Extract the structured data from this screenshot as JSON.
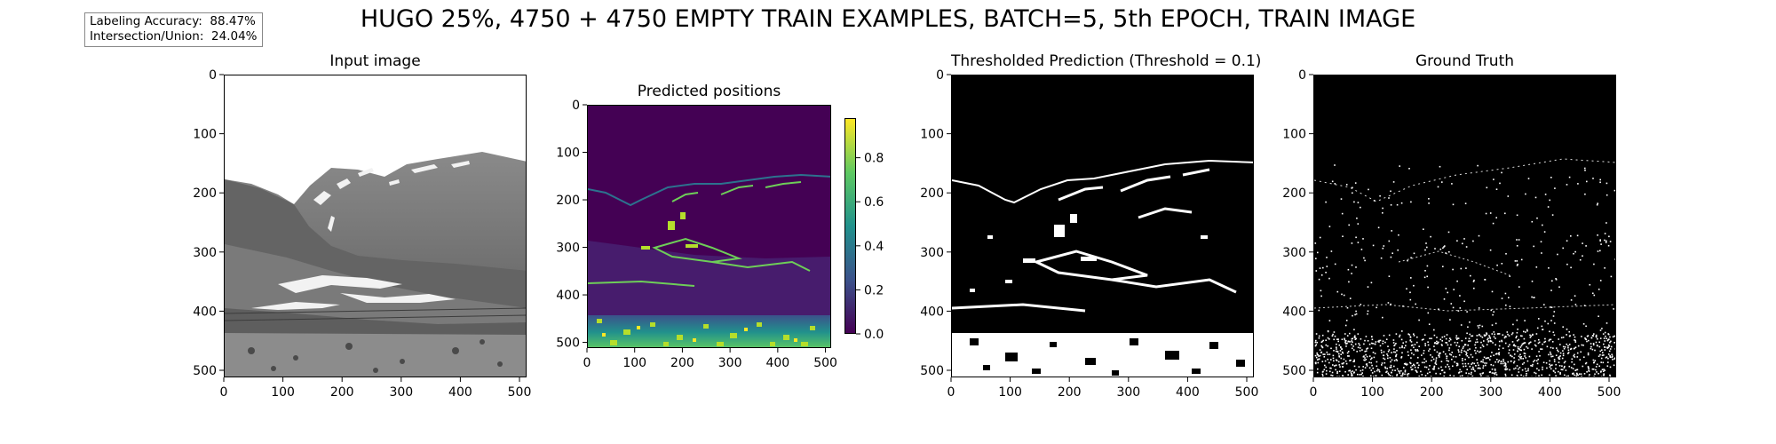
{
  "suptitle": "HUGO 25%, 4750 + 4750 EMPTY TRAIN EXAMPLES, BATCH=5, 5th EPOCH, TRAIN IMAGE",
  "metrics": {
    "accuracy_label": "Labeling Accuracy:",
    "accuracy_value": "88.47%",
    "iou_label": "Intersection/Union:",
    "iou_value": "24.04%"
  },
  "colors": {
    "viridis_low": "#440154",
    "viridis_mid": "#21918c",
    "viridis_high": "#fde725",
    "mask_on": "#ffffff",
    "mask_off": "#000000"
  },
  "chart_data": [
    {
      "type": "heatmap",
      "title": "Input image",
      "colormap": "gray",
      "xlim": [
        0,
        512
      ],
      "ylim": [
        512,
        0
      ],
      "xticks": [
        0,
        100,
        200,
        300,
        400,
        500
      ],
      "yticks": [
        0,
        100,
        200,
        300,
        400,
        500
      ]
    },
    {
      "type": "heatmap",
      "title": "Predicted positions",
      "colormap": "viridis",
      "xlim": [
        0,
        512
      ],
      "ylim": [
        512,
        0
      ],
      "xticks": [
        0,
        100,
        200,
        300,
        400,
        500
      ],
      "yticks": [
        0,
        100,
        200,
        300,
        400,
        500
      ],
      "colorbar": {
        "range": [
          0.0,
          0.98
        ],
        "ticks": [
          "0.0",
          "0.2",
          "0.4",
          "0.6",
          "0.8"
        ]
      }
    },
    {
      "type": "heatmap",
      "title": "Thresholded Prediction (Threshold = 0.1)",
      "colormap": "binary",
      "threshold": 0.1,
      "xlim": [
        0,
        512
      ],
      "ylim": [
        512,
        0
      ],
      "xticks": [
        0,
        100,
        200,
        300,
        400,
        500
      ],
      "yticks": [
        0,
        100,
        200,
        300,
        400,
        500
      ]
    },
    {
      "type": "heatmap",
      "title": "Ground Truth",
      "colormap": "binary",
      "xlim": [
        0,
        512
      ],
      "ylim": [
        512,
        0
      ],
      "xticks": [
        0,
        100,
        200,
        300,
        400,
        500
      ],
      "yticks": [
        0,
        100,
        200,
        300,
        400,
        500
      ]
    }
  ]
}
